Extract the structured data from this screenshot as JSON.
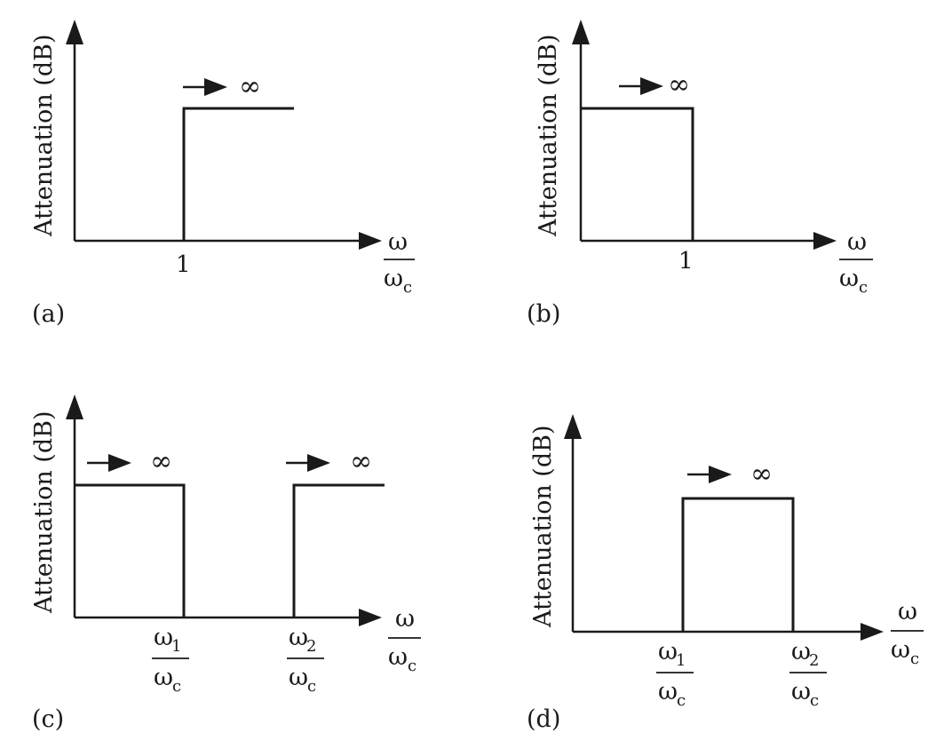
{
  "y_axis_label": "Attenuation (dB)",
  "omega": "ω",
  "omega_c": "ω",
  "sub_c": "c",
  "infinity": "∞",
  "panels": {
    "a": {
      "label": "(a)",
      "tick": "1"
    },
    "b": {
      "label": "(b)",
      "tick": "1"
    },
    "c": {
      "label": "(c)",
      "sub1": "1",
      "sub2": "2"
    },
    "d": {
      "label": "(d)",
      "sub1": "1",
      "sub2": "2"
    }
  }
}
